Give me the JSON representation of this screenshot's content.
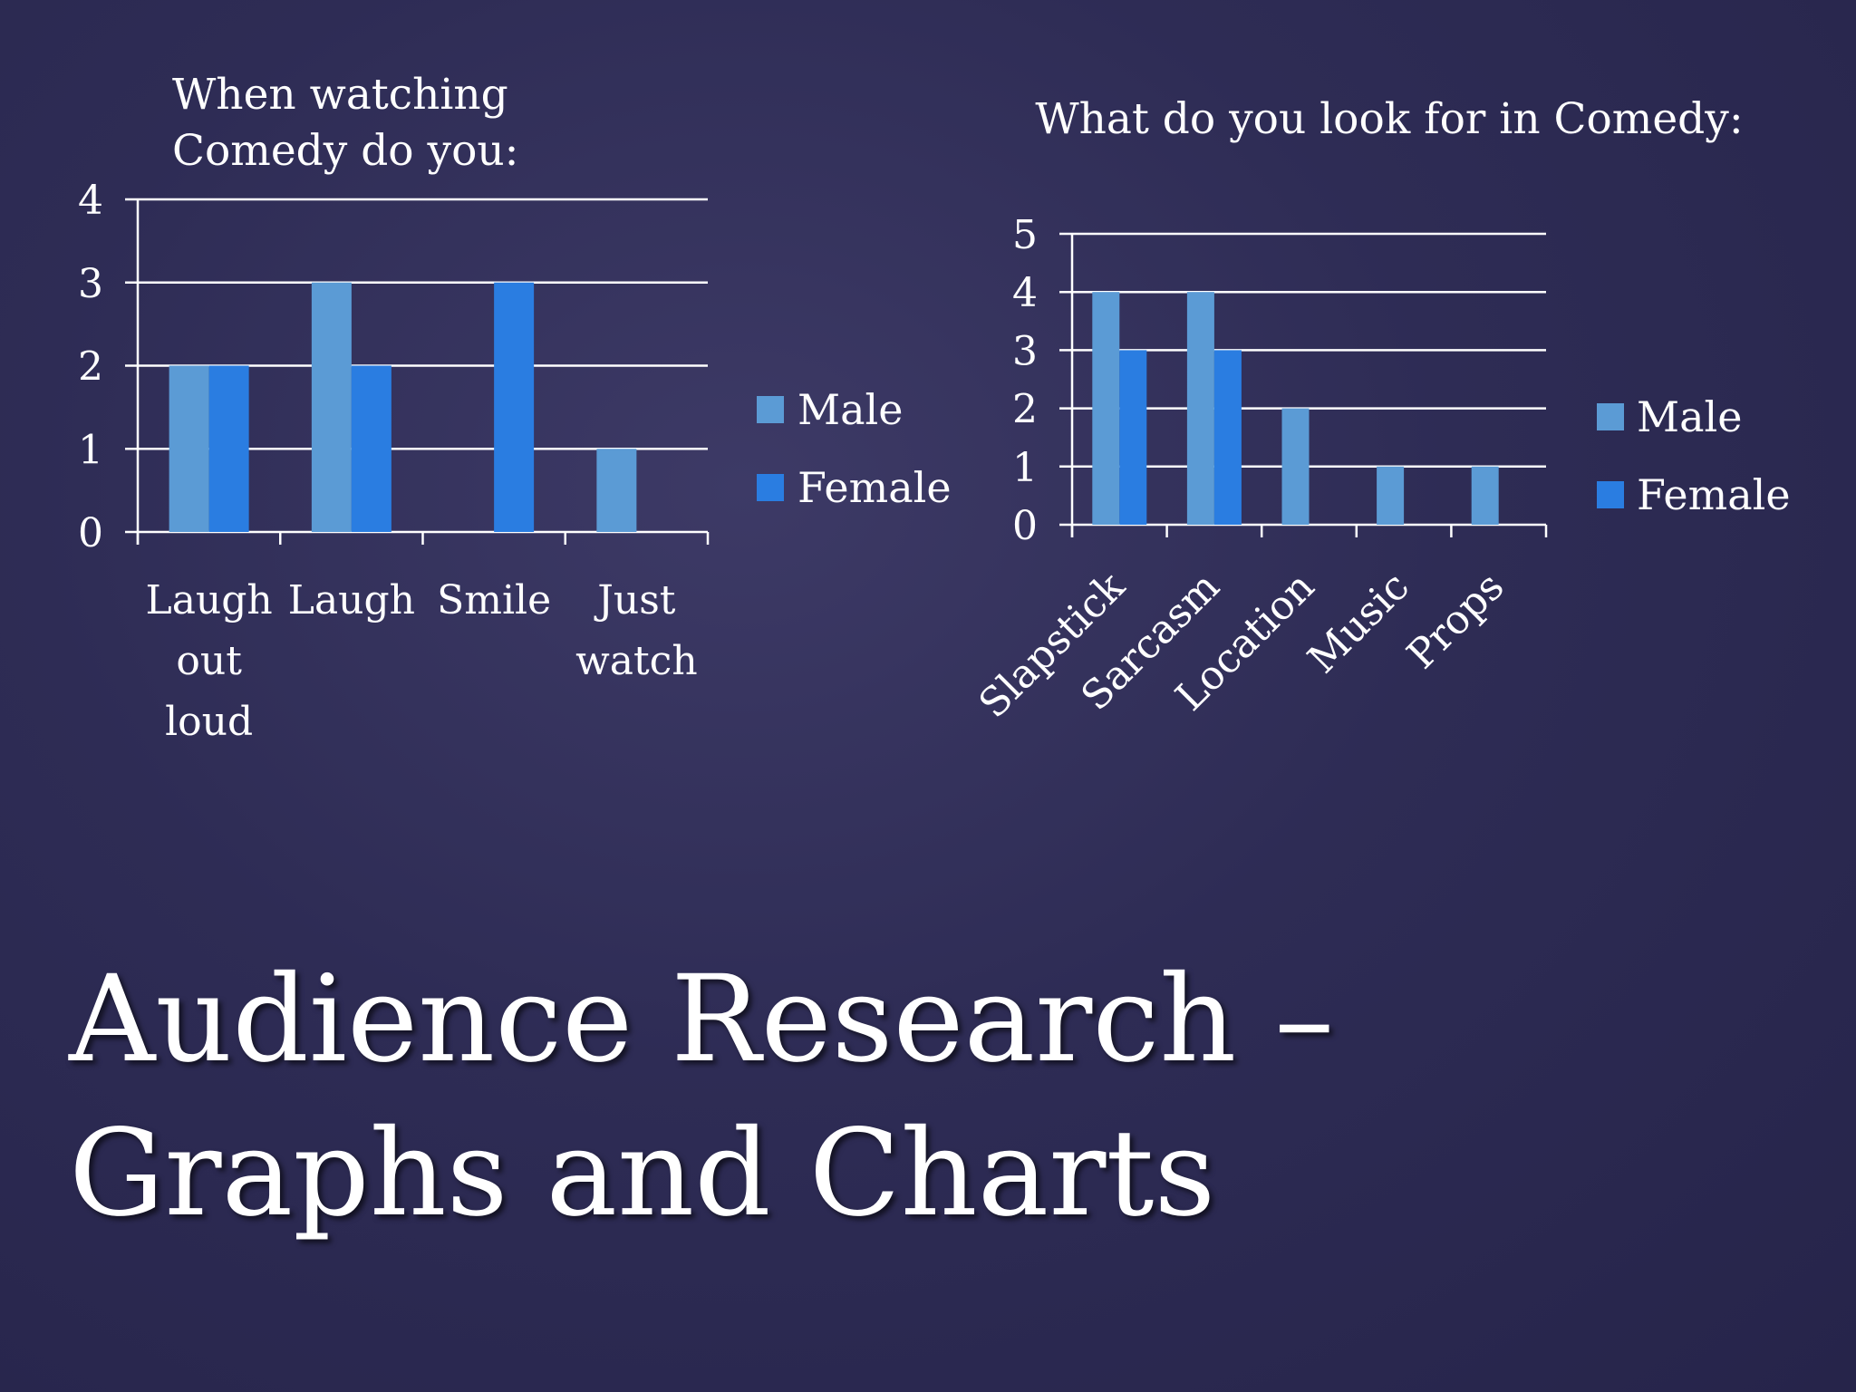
{
  "slide": {
    "title_line1": "Audience Research –",
    "title_line2": "Graphs and Charts"
  },
  "colors": {
    "male": "#5b9bd5",
    "female": "#2a7de1",
    "text": "#ffffff",
    "background": "#2e2c55"
  },
  "chart_data": [
    {
      "type": "bar",
      "title": [
        "When watching",
        "Comedy do you:"
      ],
      "categories": [
        [
          "Laugh",
          "out",
          "loud"
        ],
        [
          "Laugh"
        ],
        [
          "Smile"
        ],
        [
          "Just",
          "watch"
        ]
      ],
      "series": [
        {
          "name": "Male",
          "values": [
            2,
            3,
            0,
            1
          ]
        },
        {
          "name": "Female",
          "values": [
            2,
            2,
            3,
            0
          ]
        }
      ],
      "ylim": [
        0,
        4
      ],
      "yticks": [
        "0",
        "1",
        "2",
        "3",
        "4"
      ],
      "grid": true,
      "legend": "right"
    },
    {
      "type": "bar",
      "title": [
        "What do you look for in Comedy:"
      ],
      "categories": [
        [
          "Slapstick"
        ],
        [
          "Sarcasm"
        ],
        [
          "Location"
        ],
        [
          "Music"
        ],
        [
          "Props"
        ]
      ],
      "series": [
        {
          "name": "Male",
          "values": [
            4,
            4,
            2,
            1,
            1
          ]
        },
        {
          "name": "Female",
          "values": [
            3,
            3,
            0,
            0,
            0
          ]
        }
      ],
      "ylim": [
        0,
        5
      ],
      "yticks": [
        "0",
        "1",
        "2",
        "3",
        "4",
        "5"
      ],
      "grid": true,
      "legend": "right"
    }
  ]
}
